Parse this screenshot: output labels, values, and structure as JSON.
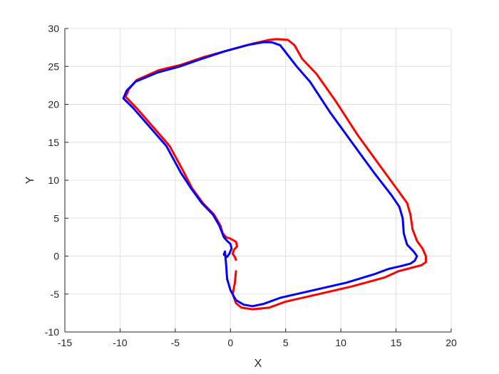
{
  "chart_data": {
    "type": "line",
    "title": "",
    "xlabel": "X",
    "ylabel": "Y",
    "xlim": [
      -15,
      20
    ],
    "ylim": [
      -10,
      30
    ],
    "xticks": [
      -15,
      -10,
      -5,
      0,
      5,
      10,
      15,
      20
    ],
    "yticks": [
      -10,
      -5,
      0,
      5,
      10,
      15,
      20,
      25,
      30
    ],
    "xtick_labels": [
      "-15",
      "-10",
      "-5",
      "0",
      "5",
      "10",
      "15",
      "20"
    ],
    "ytick_labels": [
      "-10",
      "-5",
      "0",
      "5",
      "10",
      "15",
      "20",
      "25",
      "30"
    ],
    "grid": true,
    "legend": "none",
    "series": [
      {
        "color": "#ff0000",
        "x": [
          0.5,
          0.4,
          0.2,
          0.3,
          0.6,
          0.5,
          0.0,
          -0.4,
          -0.7,
          -0.9,
          -1.5,
          -2.5,
          -3.5,
          -4.2,
          -5.5,
          -7.0,
          -8.5,
          -9.5,
          -9.2,
          -8.5,
          -6.5,
          -4.5,
          -2.5,
          0.0,
          2.0,
          3.5,
          4.2,
          5.2,
          5.8,
          6.5,
          7.8,
          9.5,
          11.5,
          13.5,
          15.0,
          16.0,
          16.3,
          16.5,
          16.9,
          17.4,
          17.7,
          17.7,
          17.3,
          16.5,
          15.2,
          14.0,
          11.0,
          8.0,
          5.0,
          3.5,
          2.0,
          1.0,
          0.5,
          0.2,
          0.4,
          0.5
        ],
        "y": [
          -0.5,
          -0.1,
          0.3,
          0.8,
          1.3,
          1.9,
          2.3,
          2.5,
          3.0,
          4.0,
          5.5,
          7.0,
          9.0,
          11.0,
          14.5,
          17.0,
          19.5,
          21.0,
          22.0,
          23.2,
          24.5,
          25.2,
          26.2,
          27.2,
          28.0,
          28.5,
          28.6,
          28.5,
          27.8,
          26.0,
          24.0,
          20.5,
          16.0,
          12.0,
          9.0,
          7.0,
          5.5,
          3.5,
          2.0,
          1.0,
          0.0,
          -0.8,
          -1.2,
          -1.5,
          -2.0,
          -2.8,
          -4.0,
          -5.0,
          -6.0,
          -6.8,
          -7.0,
          -6.8,
          -6.2,
          -5.0,
          -3.5,
          -2.0
        ]
      },
      {
        "color": "#0000ff",
        "x": [
          -0.5,
          -0.6,
          -0.3,
          -0.1,
          0.1,
          0.0,
          -0.3,
          -0.6,
          -1.0,
          -1.6,
          -2.6,
          -3.6,
          -4.5,
          -5.8,
          -7.3,
          -8.8,
          -9.7,
          -9.4,
          -8.6,
          -6.6,
          -4.6,
          -2.6,
          -0.5,
          1.5,
          3.0,
          3.7,
          4.5,
          5.2,
          6.0,
          7.2,
          9.0,
          11.0,
          13.0,
          14.6,
          15.3,
          15.6,
          15.7,
          16.0,
          16.6,
          16.9,
          16.7,
          16.3,
          15.5,
          14.3,
          13.0,
          10.5,
          7.5,
          4.5,
          3.0,
          2.0,
          1.2,
          0.5,
          0.0,
          -0.3,
          -0.4,
          -0.5
        ],
        "y": [
          0.6,
          0.2,
          -0.1,
          0.3,
          1.0,
          1.6,
          2.0,
          2.5,
          4.0,
          5.5,
          7.0,
          9.0,
          11.0,
          14.5,
          17.0,
          19.5,
          20.8,
          21.8,
          23.0,
          24.2,
          25.0,
          26.0,
          27.0,
          27.8,
          28.2,
          28.2,
          27.8,
          26.5,
          25.0,
          23.0,
          19.0,
          15.0,
          11.0,
          8.0,
          6.5,
          5.0,
          3.0,
          1.5,
          0.6,
          0.0,
          -0.6,
          -1.0,
          -1.3,
          -1.7,
          -2.4,
          -3.5,
          -4.5,
          -5.5,
          -6.3,
          -6.6,
          -6.4,
          -5.8,
          -4.5,
          -3.0,
          -1.0,
          0.6
        ]
      }
    ]
  }
}
